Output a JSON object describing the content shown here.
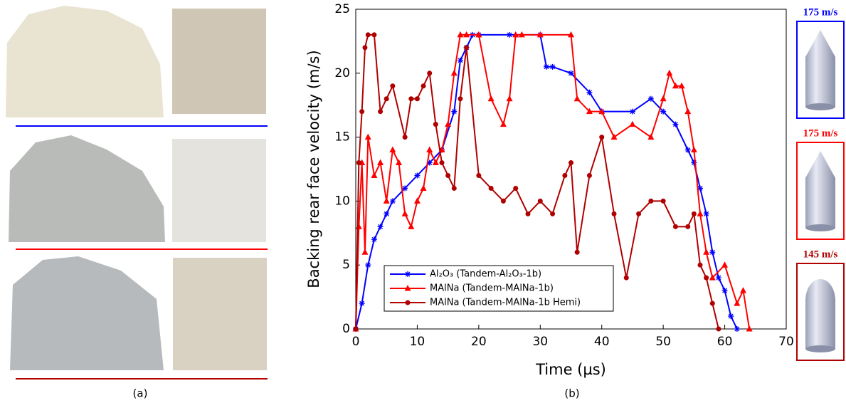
{
  "panel_a": {
    "label": "(a)"
  },
  "panel_b": {
    "label": "(b)"
  },
  "projectiles": [
    {
      "label": "175 m/s",
      "color": "#0000ff"
    },
    {
      "label": "175 m/s",
      "color": "#ff0000"
    },
    {
      "label": "145 m/s",
      "color": "#b00000"
    }
  ],
  "chart_data": {
    "type": "line",
    "xlabel": "Time (µs)",
    "ylabel": "Backing rear face velocity (m/s)",
    "xlim": [
      0,
      70
    ],
    "xticks": [
      0,
      10,
      20,
      30,
      40,
      50,
      60,
      70
    ],
    "ylim": [
      0,
      25
    ],
    "yticks": [
      0,
      5,
      10,
      15,
      20,
      25
    ],
    "series": [
      {
        "name": "Al₂O₃ (Tandem-Al₂O₃-1b)",
        "color": "#0000ff",
        "marker": "star",
        "x": [
          0,
          1,
          2,
          3,
          4,
          5,
          6,
          8,
          10,
          12,
          14,
          16,
          17,
          18,
          19,
          20,
          25,
          30,
          31,
          32,
          35,
          38,
          40,
          45,
          48,
          50,
          52,
          54,
          55,
          56,
          57,
          58,
          59,
          60,
          61,
          62
        ],
        "values": [
          0,
          2,
          5,
          7,
          8,
          9,
          10,
          11,
          12,
          13,
          14,
          17,
          21,
          22,
          23,
          23,
          23,
          23,
          20.5,
          20.5,
          20,
          18.5,
          17,
          17,
          18,
          17,
          16,
          14,
          13,
          11,
          9,
          6,
          4,
          3,
          1,
          0
        ]
      },
      {
        "name": "MAlNa (Tandem-MAlNa-1b)",
        "color": "#ff0000",
        "marker": "triangle",
        "x": [
          0,
          0.5,
          1,
          1.5,
          2,
          3,
          4,
          5,
          6,
          7,
          8,
          9,
          10,
          11,
          12,
          13,
          14,
          15,
          16,
          17,
          18,
          20,
          22,
          24,
          25,
          26,
          27,
          30,
          35,
          36,
          38,
          40,
          42,
          45,
          48,
          50,
          51,
          52,
          53,
          54,
          55,
          56,
          57,
          58,
          60,
          62,
          63,
          64
        ],
        "values": [
          0,
          8,
          13,
          6,
          15,
          12,
          13,
          10,
          14,
          13,
          9,
          8,
          10,
          11,
          14,
          13,
          14,
          16,
          20,
          23,
          23,
          23,
          18,
          16,
          18,
          23,
          23,
          23,
          23,
          18,
          17,
          17,
          15,
          16,
          15,
          18,
          20,
          19,
          19,
          17,
          14,
          9,
          6,
          4,
          5,
          2,
          3,
          0
        ]
      },
      {
        "name": "MAlNa (Tandem-MAlNa-1b Hemi)",
        "color": "#b00000",
        "marker": "circle",
        "x": [
          0,
          0.5,
          1,
          1.5,
          2,
          3,
          4,
          5,
          6,
          8,
          9,
          10,
          11,
          12,
          13,
          14,
          15,
          16,
          17,
          18,
          20,
          22,
          24,
          26,
          28,
          30,
          32,
          34,
          35,
          36,
          38,
          40,
          42,
          44,
          46,
          48,
          50,
          52,
          54,
          55,
          56,
          57,
          58,
          59
        ],
        "values": [
          0,
          13,
          17,
          22,
          23,
          23,
          17,
          18,
          19,
          15,
          18,
          18,
          19,
          20,
          16,
          13,
          12,
          11,
          18,
          22,
          12,
          11,
          10,
          11,
          9,
          10,
          9,
          12,
          13,
          6,
          12,
          15,
          9,
          4,
          9,
          10,
          10,
          8,
          8,
          9,
          5,
          4,
          2,
          0
        ]
      }
    ]
  }
}
